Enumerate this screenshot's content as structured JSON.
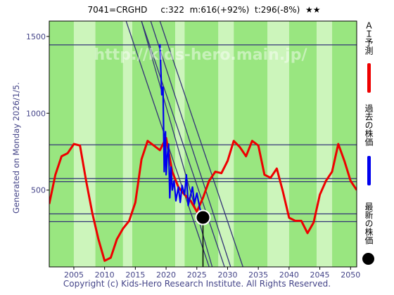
{
  "header": {
    "code": "7041=CRGHD",
    "current": "c:322",
    "max": "m:616(+92%)",
    "target": "t:296(-8%)",
    "rating": "★★"
  },
  "side_note": "Generated on Monday 2026/1/5.",
  "footer": "Copyright (c) Kids-Hero Research Institute. All Rights Reserved.",
  "watermark": "http://kids-hero.main.jp/",
  "legend": {
    "forecast": "ＡＩ予測",
    "past": "過去の株価",
    "latest": "最新の株価"
  },
  "colors": {
    "forecast": "#ee0000",
    "past": "#0000ee",
    "latest": "#000000",
    "band_green": "#99e680",
    "band_light": "#ccf5bb",
    "grid_line": "#333377",
    "axis_text": "#444488"
  },
  "chart_data": {
    "type": "line",
    "xlim": [
      2001,
      2051
    ],
    "ylim": [
      0,
      1600
    ],
    "x_ticks": [
      2005,
      2010,
      2015,
      2020,
      2025,
      2030,
      2035,
      2040,
      2045,
      2050
    ],
    "y_ticks": [
      500,
      1000,
      1500
    ],
    "horizontal_levels": [
      1445,
      795,
      575,
      555,
      345,
      295
    ],
    "diagonal_lines": [
      {
        "x1": 2013.5,
        "y1": 1600,
        "x2": 2027.0,
        "y2": 0
      },
      {
        "x1": 2016.0,
        "y1": 1600,
        "x2": 2027.5,
        "y2": 0
      },
      {
        "x1": 2017.5,
        "y1": 1600,
        "x2": 2030.5,
        "y2": 0
      },
      {
        "x1": 2016.0,
        "y1": 1600,
        "x2": 2029.5,
        "y2": 0
      },
      {
        "x1": 2019.0,
        "y1": 1600,
        "x2": 2032.5,
        "y2": 0
      }
    ],
    "series": [
      {
        "name": "ＡＩ予測",
        "x": [
          2001,
          2002,
          2003,
          2004,
          2005,
          2006,
          2007,
          2008,
          2009,
          2010,
          2011,
          2012,
          2013,
          2014,
          2015,
          2016,
          2017,
          2018,
          2019,
          2020,
          2021,
          2022,
          2023,
          2024,
          2025,
          2026,
          2027,
          2028,
          2029,
          2030,
          2031,
          2032,
          2033,
          2034,
          2035,
          2036,
          2037,
          2038,
          2039,
          2040,
          2041,
          2042,
          2043,
          2044,
          2045,
          2046,
          2047,
          2048,
          2049,
          2050,
          2051
        ],
        "values": [
          410,
          600,
          720,
          740,
          800,
          790,
          560,
          350,
          180,
          40,
          60,
          180,
          250,
          300,
          420,
          700,
          820,
          790,
          760,
          840,
          620,
          520,
          470,
          430,
          360,
          450,
          560,
          620,
          610,
          690,
          820,
          780,
          720,
          820,
          790,
          600,
          580,
          640,
          490,
          320,
          300,
          300,
          220,
          290,
          470,
          560,
          620,
          800,
          690,
          560,
          500
        ]
      },
      {
        "name": "過去の株価",
        "x": [
          2019.0,
          2019.3,
          2019.5,
          2019.7,
          2019.9,
          2020.0,
          2020.2,
          2020.4,
          2020.6,
          2020.8,
          2021.0,
          2021.3,
          2021.6,
          2022.0,
          2022.3,
          2022.6,
          2023.0,
          2023.3,
          2023.6,
          2024.0,
          2024.3,
          2024.6,
          2025.0,
          2025.5,
          2026.0
        ],
        "values": [
          1450,
          1120,
          1170,
          620,
          880,
          600,
          720,
          800,
          450,
          650,
          500,
          560,
          430,
          520,
          420,
          530,
          470,
          600,
          400,
          470,
          520,
          410,
          480,
          380,
          322
        ]
      }
    ],
    "latest_point": {
      "x": 2026.0,
      "y": 322
    }
  }
}
